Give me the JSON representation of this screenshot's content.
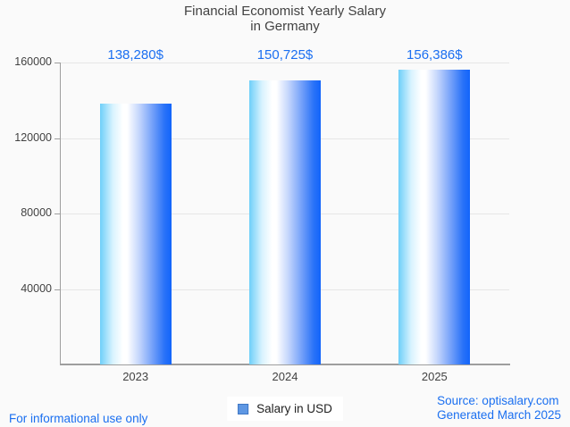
{
  "title": {
    "line1": "Financial Economist Yearly Salary",
    "line2": "in Germany"
  },
  "chart_data": {
    "type": "bar",
    "categories": [
      "2023",
      "2024",
      "2025"
    ],
    "series": [
      {
        "name": "Salary in USD",
        "values": [
          138280,
          150725,
          156386
        ]
      }
    ],
    "value_labels": [
      "138,280$",
      "150,725$",
      "156,386$"
    ],
    "ylim": [
      0,
      160000
    ],
    "yticks": [
      40000,
      80000,
      120000,
      160000
    ],
    "ytick_labels": [
      "40000",
      "80000",
      "120000",
      "160000"
    ],
    "xlabel": "",
    "ylabel": "",
    "grid": true,
    "legend": {
      "label": "Salary in USD",
      "position": "bottom"
    }
  },
  "footer": {
    "disclaimer": "For informational use only",
    "source": "Source: optisalary.com",
    "generated": "Generated March 2025"
  },
  "colors": {
    "accent_blue": "#1b6ff1",
    "bar_gradient_left": "#6ecff9",
    "bar_gradient_mid": "#ffffff",
    "bar_gradient_right": "#1164fb",
    "legend_marker_fill": "#5e97e3",
    "legend_marker_border": "#3f77c4",
    "axis_text": "#424242",
    "grid_line": "#e6e6e6",
    "axis_line": "#9e9e9e",
    "background": "#fafafa"
  }
}
